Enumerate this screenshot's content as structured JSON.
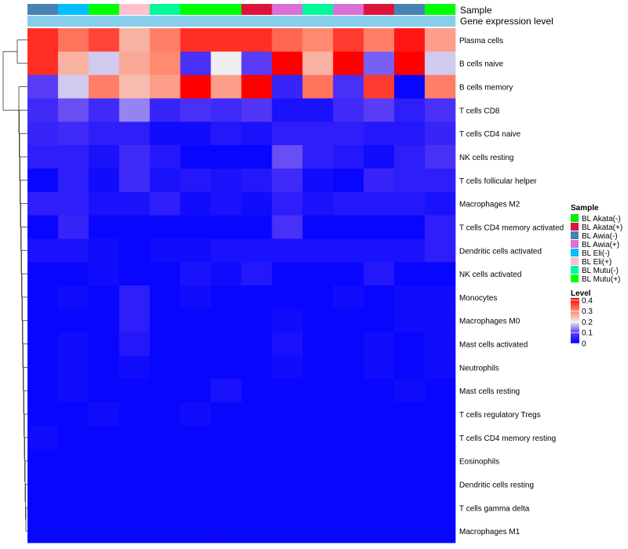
{
  "chart_data": {
    "type": "heatmap",
    "annotation_labels": [
      "Sample",
      "Gene expression level"
    ],
    "columns": [
      "BL Awia(-)",
      "BL Eli(-)",
      "BL Mutu(+)",
      "BL Eli(+)",
      "BL Mutu(-)",
      "BL Mutu(+)",
      "BL Mutu(+)",
      "BL Akata(+)",
      "BL Awia(+)",
      "BL Mutu(-)",
      "BL Awia(+)",
      "BL Akata(+)",
      "BL Awia(-)",
      "BL Mutu(+)"
    ],
    "rows": [
      "Plasma cells",
      "B cells naive",
      "B cells memory",
      "T cells CD8",
      "T cells CD4 naive",
      "NK cells resting",
      "T cells follicular helper",
      "Macrophages M2",
      "T cells CD4 memory activated",
      "Dendritic cells activated",
      "NK cells activated",
      "Monocytes",
      "Macrophages M0",
      "Mast cells activated",
      "Neutrophils",
      "Mast cells resting",
      "T cells regulatory  Tregs",
      "T cells CD4 memory resting",
      "Eosinophils",
      "Dendritic cells resting",
      "T cells gamma delta",
      "Macrophages M1"
    ],
    "values": [
      [
        0.38,
        0.32,
        0.36,
        0.26,
        0.31,
        0.38,
        0.38,
        0.38,
        0.33,
        0.3,
        0.37,
        0.31,
        0.4,
        0.28
      ],
      [
        0.38,
        0.26,
        0.18,
        0.27,
        0.3,
        0.08,
        0.2,
        0.1,
        0.42,
        0.26,
        0.42,
        0.12,
        0.42,
        0.18
      ],
      [
        0.1,
        0.18,
        0.31,
        0.25,
        0.28,
        0.42,
        0.28,
        0.42,
        0.06,
        0.32,
        0.08,
        0.37,
        0.01,
        0.31
      ],
      [
        0.07,
        0.11,
        0.07,
        0.14,
        0.06,
        0.08,
        0.07,
        0.09,
        0.03,
        0.03,
        0.07,
        0.1,
        0.05,
        0.08
      ],
      [
        0.06,
        0.07,
        0.05,
        0.05,
        0.02,
        0.02,
        0.04,
        0.03,
        0.05,
        0.05,
        0.05,
        0.04,
        0.04,
        0.06
      ],
      [
        0.05,
        0.05,
        0.03,
        0.07,
        0.04,
        0.01,
        0.01,
        0.01,
        0.11,
        0.05,
        0.04,
        0.02,
        0.05,
        0.08
      ],
      [
        0.01,
        0.05,
        0.02,
        0.07,
        0.03,
        0.04,
        0.03,
        0.04,
        0.07,
        0.02,
        0.01,
        0.06,
        0.05,
        0.05
      ],
      [
        0.05,
        0.05,
        0.03,
        0.03,
        0.05,
        0.02,
        0.03,
        0.02,
        0.05,
        0.03,
        0.04,
        0.04,
        0.04,
        0.03
      ],
      [
        0.01,
        0.06,
        0.01,
        0.01,
        0.01,
        0.01,
        0.01,
        0.01,
        0.08,
        0.01,
        0.01,
        0.01,
        0.01,
        0.05
      ],
      [
        0.03,
        0.03,
        0.02,
        0.01,
        0.02,
        0.02,
        0.03,
        0.03,
        0.03,
        0.03,
        0.03,
        0.03,
        0.03,
        0.05
      ],
      [
        0.01,
        0.01,
        0.02,
        0.01,
        0.01,
        0.03,
        0.02,
        0.04,
        0.01,
        0.01,
        0.01,
        0.04,
        0.01,
        0.01
      ],
      [
        0.01,
        0.02,
        0.01,
        0.05,
        0.01,
        0.02,
        0.01,
        0.01,
        0.01,
        0.01,
        0.02,
        0.01,
        0.02,
        0.02
      ],
      [
        0.01,
        0.01,
        0.01,
        0.05,
        0.01,
        0.01,
        0.01,
        0.01,
        0.02,
        0.01,
        0.01,
        0.01,
        0.02,
        0.02
      ],
      [
        0.01,
        0.02,
        0.01,
        0.04,
        0.01,
        0.01,
        0.01,
        0.01,
        0.03,
        0.01,
        0.01,
        0.02,
        0.01,
        0.02
      ],
      [
        0.01,
        0.02,
        0.01,
        0.02,
        0.01,
        0.01,
        0.01,
        0.01,
        0.02,
        0.01,
        0.01,
        0.02,
        0.01,
        0.02
      ],
      [
        0.01,
        0.02,
        0.01,
        0.01,
        0.01,
        0.01,
        0.03,
        0.01,
        0.01,
        0.01,
        0.01,
        0.01,
        0.02,
        0.01
      ],
      [
        0.01,
        0.01,
        0.02,
        0.01,
        0.01,
        0.02,
        0.01,
        0.01,
        0.01,
        0.01,
        0.01,
        0.01,
        0.01,
        0.01
      ],
      [
        0.02,
        0.01,
        0.01,
        0.01,
        0.01,
        0.01,
        0.01,
        0.01,
        0.01,
        0.01,
        0.01,
        0.01,
        0.01,
        0.01
      ],
      [
        0.01,
        0.01,
        0.01,
        0.01,
        0.01,
        0.01,
        0.01,
        0.01,
        0.01,
        0.01,
        0.01,
        0.01,
        0.01,
        0.01
      ],
      [
        0.01,
        0.01,
        0.01,
        0.01,
        0.01,
        0.01,
        0.01,
        0.01,
        0.01,
        0.01,
        0.01,
        0.01,
        0.01,
        0.01
      ],
      [
        0.01,
        0.01,
        0.01,
        0.01,
        0.01,
        0.01,
        0.01,
        0.01,
        0.01,
        0.01,
        0.01,
        0.01,
        0.01,
        0.01
      ],
      [
        0.01,
        0.01,
        0.01,
        0.01,
        0.01,
        0.01,
        0.01,
        0.01,
        0.01,
        0.01,
        0.01,
        0.01,
        0.01,
        0.01
      ]
    ],
    "color_scale": {
      "stops": [
        [
          0,
          "#0000ff"
        ],
        [
          0.1,
          "#5a3cf5"
        ],
        [
          0.2,
          "#eeeeee"
        ],
        [
          0.3,
          "#ff8a70"
        ],
        [
          0.42,
          "#ff0000"
        ]
      ],
      "range": [
        0,
        0.42
      ]
    },
    "gene_expression_level_color": "#87ceeb",
    "legend_sample": {
      "title": "Sample",
      "entries": [
        {
          "label": "BL Akata(-)",
          "color": "#00ee00"
        },
        {
          "label": "BL Akata(+)",
          "color": "#dc143c"
        },
        {
          "label": "BL Awia(-)",
          "color": "#4682b4"
        },
        {
          "label": "BL Awia(+)",
          "color": "#da70d6"
        },
        {
          "label": "BL Eli(-)",
          "color": "#00bfff"
        },
        {
          "label": "BL Eli(+)",
          "color": "#ffc0cb"
        },
        {
          "label": "BL Mutu(-)",
          "color": "#00fa9a"
        },
        {
          "label": "BL Mutu(+)",
          "color": "#00ff00"
        }
      ]
    },
    "legend_level": {
      "title": "Level",
      "ticks": [
        {
          "label": "0.4",
          "value": 0.4
        },
        {
          "label": "0.3",
          "value": 0.3
        },
        {
          "label": "0.2",
          "value": 0.2
        },
        {
          "label": "0.1",
          "value": 0.1
        },
        {
          "label": "0",
          "value": 0
        }
      ]
    },
    "column_sample_colors": [
      "#4682b4",
      "#00bfff",
      "#00ff00",
      "#ffc0cb",
      "#00fa9a",
      "#00ff00",
      "#00ff00",
      "#dc143c",
      "#da70d6",
      "#00fa9a",
      "#da70d6",
      "#dc143c",
      "#4682b4",
      "#00ff00"
    ],
    "dendrogram": "left"
  }
}
